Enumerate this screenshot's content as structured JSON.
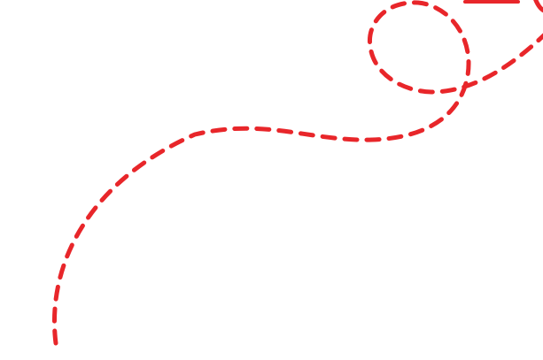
{
  "canvas": {
    "background": "#ffffff",
    "stroke_color": "#e8262a",
    "line_style": "dashed"
  },
  "shapes": [
    {
      "kind": "dashed-curve-with-loop",
      "label": ""
    },
    {
      "kind": "dashed-line-top",
      "label": ""
    }
  ]
}
